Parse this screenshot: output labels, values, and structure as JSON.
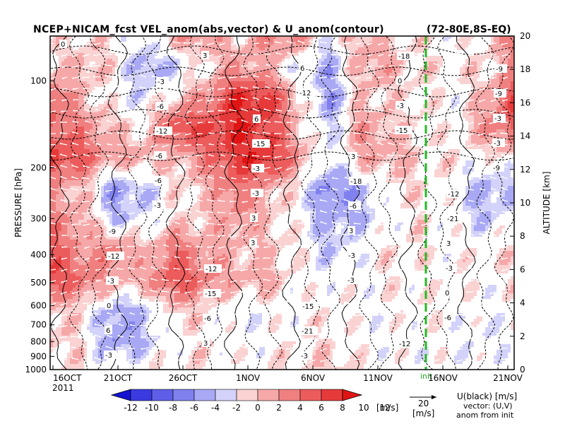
{
  "chart_data": {
    "type": "heatmap",
    "title": "NCEP+NICAM_fcst VEL_anom(abs,vector) & U_anom(contour)",
    "region": "(72-80E,8S-EQ)",
    "ylabel_left": "PRESSURE [hPa]",
    "ylabel_right": "ALTITUDE [km]",
    "year_label": "2011",
    "x_ticks": [
      "16OCT",
      "21OCT",
      "26OCT",
      "1NOV",
      "6NOV",
      "11NOV",
      "16NOV",
      "21NOV"
    ],
    "y_ticks_pressure": [
      "100",
      "200",
      "300",
      "400",
      "500",
      "600",
      "700",
      "800",
      "900",
      "1000"
    ],
    "y_ticks_altitude": [
      "0",
      "2",
      "4",
      "6",
      "8",
      "10",
      "12",
      "14",
      "16",
      "18",
      "20"
    ],
    "init_label": "init",
    "colorbar": {
      "ticks": [
        "-12",
        "-10",
        "-8",
        "-6",
        "-4",
        "-2",
        "0",
        "2",
        "4",
        "6",
        "8",
        "10",
        "12"
      ],
      "unit": "[m/s]",
      "colors": [
        "#1414d2",
        "#3a3ae0",
        "#5e5ee8",
        "#8080ee",
        "#a8a8f4",
        "#d2d2fa",
        "#fad2d2",
        "#f6a8a8",
        "#f08080",
        "#ec5c5c",
        "#e63a3a",
        "#e01414"
      ]
    },
    "vector_legend": {
      "value": "20",
      "unit": "[m/s]"
    },
    "legend_text": [
      "U(black) [m/s]",
      "vector: (U,V)",
      "anom from init"
    ],
    "contour_labels": [
      "0",
      "-3",
      "6",
      "3",
      "-12",
      "-9",
      "-12",
      "-15",
      "-12",
      "-9",
      "-6",
      "-15",
      "-18",
      "-21",
      "-12",
      "-15",
      "-21",
      "-18",
      "-9",
      "-12",
      "-3",
      "-6",
      "3",
      "-3",
      "-6",
      "-3",
      "0",
      "-3",
      "-6",
      "-3",
      "3",
      "-3",
      "0",
      "3",
      "6",
      "-3",
      "-3",
      "-6",
      "3",
      "-3",
      "0",
      "6",
      "3",
      "-12",
      "-15",
      "-9",
      "-3",
      "3",
      "-3",
      "-6",
      "-3"
    ],
    "color_field": [
      [
        1,
        1,
        1,
        -1,
        3,
        4,
        1,
        5,
        4,
        -1,
        3,
        1,
        1,
        0,
        1,
        5
      ],
      [
        1,
        3,
        1,
        -3,
        -2,
        1,
        4,
        2,
        -1,
        -3,
        3,
        3,
        1,
        1,
        1,
        4
      ],
      [
        7,
        2,
        0,
        -1,
        2,
        4,
        10,
        9,
        2,
        -4,
        2,
        1,
        1,
        0,
        2,
        9
      ],
      [
        6,
        5,
        2,
        1,
        8,
        8,
        10,
        8,
        2,
        -2,
        4,
        2,
        1,
        0,
        4,
        7
      ],
      [
        9,
        7,
        3,
        3,
        2,
        5,
        9,
        10,
        4,
        -1,
        3,
        3,
        1,
        1,
        0,
        1
      ],
      [
        3,
        2,
        -4,
        -2,
        1,
        2,
        6,
        3,
        0,
        -5,
        -3,
        1,
        1,
        0,
        -3,
        -2
      ],
      [
        5,
        3,
        -2,
        -1,
        1,
        2,
        4,
        2,
        0,
        -3,
        -2,
        0,
        1,
        0,
        -2,
        0
      ],
      [
        7,
        4,
        5,
        2,
        6,
        3,
        2,
        2,
        1,
        -2,
        0,
        1,
        1,
        0,
        1,
        1
      ],
      [
        8,
        6,
        3,
        3,
        8,
        5,
        3,
        3,
        0,
        0,
        0,
        1,
        0,
        1,
        0,
        1
      ],
      [
        2,
        1,
        -3,
        -2,
        2,
        1,
        -1,
        0,
        0,
        1,
        0,
        0,
        1,
        0,
        0,
        0
      ],
      [
        2,
        1,
        -4,
        -2,
        0,
        1,
        0,
        0,
        1,
        1,
        0,
        0,
        0,
        0,
        -1,
        0
      ],
      [
        1,
        1,
        0,
        1,
        1,
        1,
        0,
        1,
        1,
        2,
        1,
        0,
        0,
        0,
        0,
        0
      ]
    ]
  }
}
